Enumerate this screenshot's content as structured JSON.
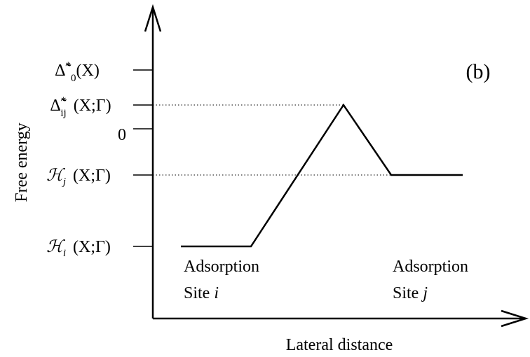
{
  "diagram": {
    "y_axis_label": "Free energy",
    "x_axis_label": "Lateral distance",
    "panel_label": "(b)",
    "levels": [
      {
        "symbol": "Δ̃",
        "sup": "*",
        "sub": "0",
        "args": "(X)"
      },
      {
        "symbol": "Δ̃",
        "sup": "*",
        "sub": "ij",
        "args": "(X;Γ)"
      },
      {
        "symbol": "0"
      },
      {
        "symbol": "ℋ",
        "sub": "j",
        "args": "(X;Γ)"
      },
      {
        "symbol": "ℋ",
        "sub": "i",
        "args": "(X;Γ)"
      }
    ],
    "sites": [
      {
        "line1": "Adsorption",
        "line2": "Site",
        "index": "i"
      },
      {
        "line1": "Adsorption",
        "line2": "Site",
        "index": "j"
      }
    ]
  }
}
